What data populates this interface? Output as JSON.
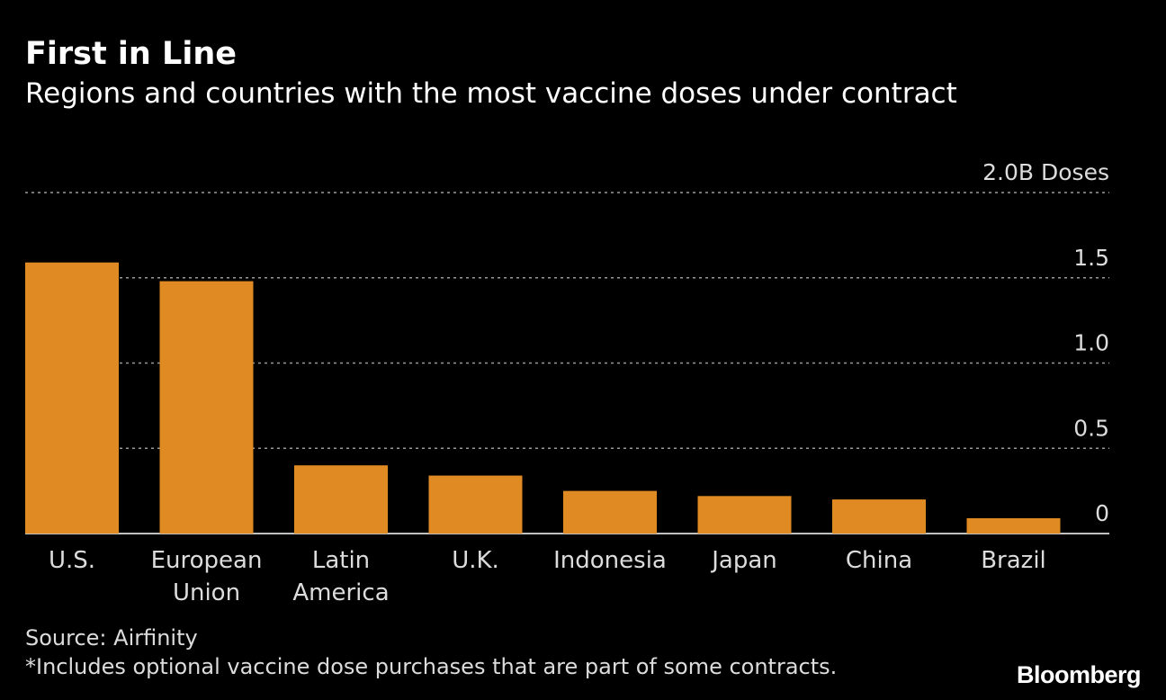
{
  "header": {
    "title": "First in Line",
    "subtitle": "Regions and countries with the most vaccine doses under contract"
  },
  "footer": {
    "source": "Source: Airfinity",
    "note": "*Includes optional vaccine dose purchases that are part of some contracts.",
    "logo": "Bloomberg"
  },
  "colors": {
    "bar": "#E08A24",
    "background": "#000000",
    "text": "#FFFFFF",
    "gridline": "#9A9A9A"
  },
  "chart_data": {
    "type": "bar",
    "title": "First in Line",
    "subtitle": "Regions and countries with the most vaccine doses under contract",
    "categories": [
      [
        "U.S."
      ],
      [
        "European",
        "Union"
      ],
      [
        "Latin",
        "America"
      ],
      [
        "U.K."
      ],
      [
        "Indonesia"
      ],
      [
        "Japan"
      ],
      [
        "China"
      ],
      [
        "Brazil"
      ]
    ],
    "values": [
      1.59,
      1.48,
      0.4,
      0.34,
      0.25,
      0.22,
      0.2,
      0.09
    ],
    "units": "B Doses",
    "ylim": [
      0,
      2.0
    ],
    "yticks": [
      {
        "value": 2.0,
        "label": "2.0B Doses"
      },
      {
        "value": 1.5,
        "label": "1.5"
      },
      {
        "value": 1.0,
        "label": "1.0"
      },
      {
        "value": 0.5,
        "label": "0.5"
      },
      {
        "value": 0,
        "label": "0"
      }
    ],
    "axis_position": "right",
    "grid": true
  }
}
